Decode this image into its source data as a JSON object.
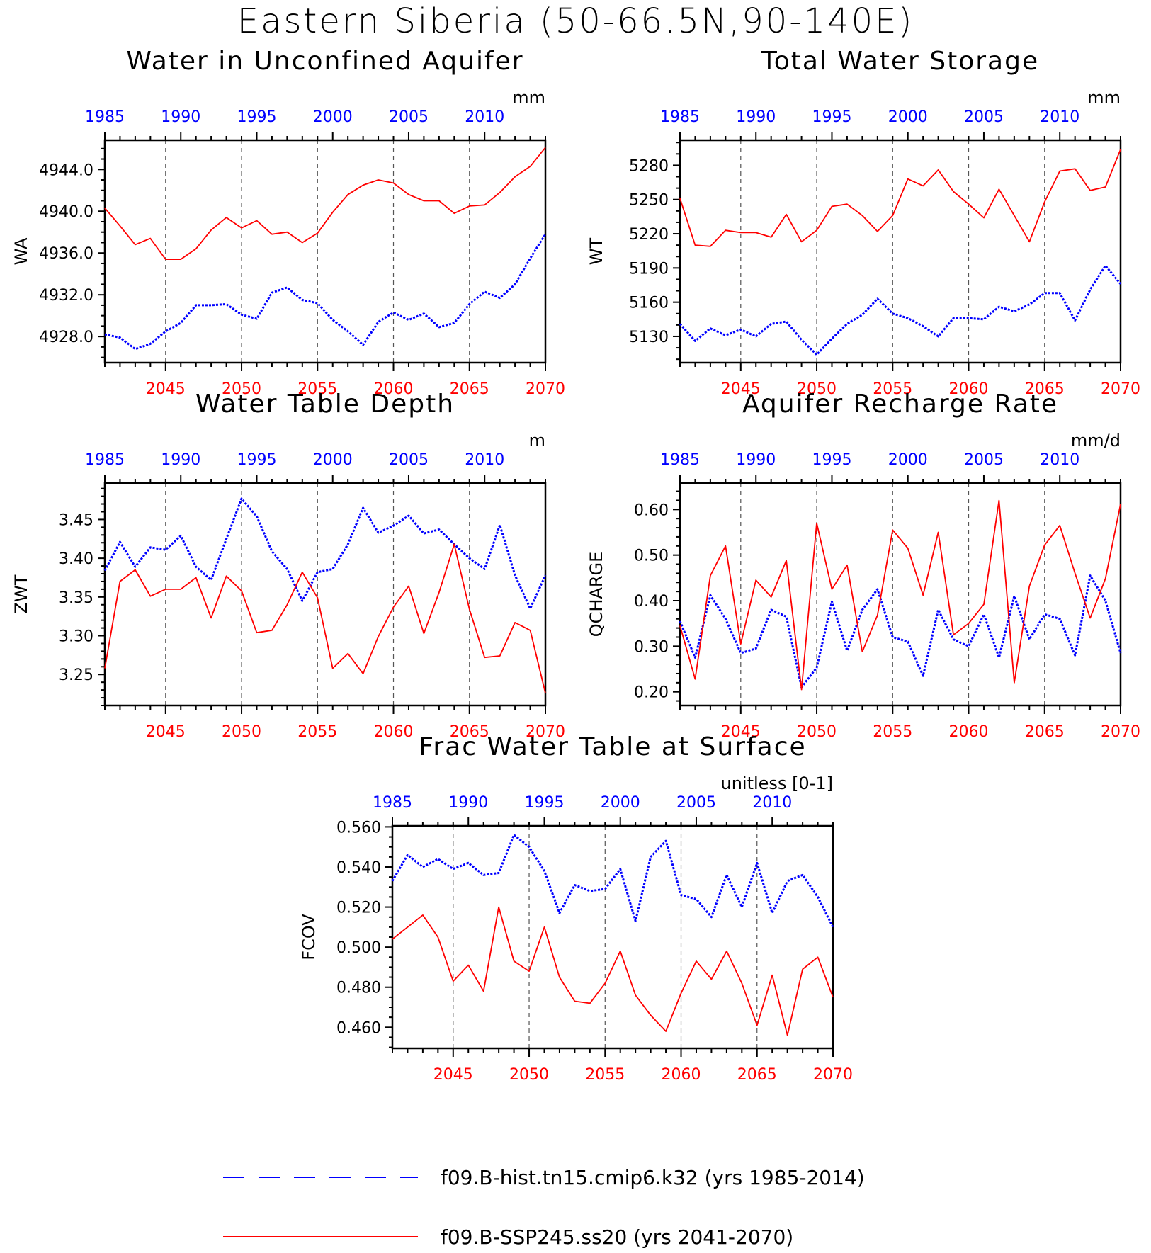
{
  "title": "Eastern Siberia (50-66.5N,90-140E)",
  "colors": {
    "hist": "#0000ff",
    "ssp": "#ff0000",
    "axis": "#000000",
    "grid": "#555555"
  },
  "legend": {
    "hist_label": "f09.B-hist.tn15.cmip6.k32 (yrs 1985-2014)",
    "ssp_label": "f09.B-SSP245.ss20 (yrs 2041-2070)"
  },
  "chart_data": [
    {
      "id": "wa",
      "type": "line",
      "title": "Water in Unconfined Aquifer",
      "ylabel": "WA",
      "units": "mm",
      "ylim": [
        4925.5,
        4946.8
      ],
      "yticks": [
        4928.0,
        4932.0,
        4936.0,
        4940.0,
        4944.0
      ],
      "yminor": 1,
      "ytick_decimals": 1,
      "x_top_ticks": [
        1985,
        1990,
        1995,
        2000,
        2005,
        2010
      ],
      "x_bottom_ticks": [
        2045,
        2050,
        2055,
        2060,
        2065,
        2070
      ],
      "xlim_top": [
        1985,
        2014
      ],
      "xlim_bottom": [
        2041,
        2070
      ],
      "series": [
        {
          "name": "f09.B-hist.tn15.cmip6.k32 (yrs 1985-2014)",
          "x_start": 1985,
          "values": [
            4928.2,
            4927.9,
            4926.8,
            4927.3,
            4928.5,
            4929.3,
            4931.0,
            4931.0,
            4931.1,
            4930.1,
            4929.7,
            4932.2,
            4932.7,
            4931.5,
            4931.2,
            4929.6,
            4928.5,
            4927.2,
            4929.4,
            4930.3,
            4929.6,
            4930.2,
            4928.9,
            4929.3,
            4931.1,
            4932.3,
            4931.7,
            4933.0,
            4935.5,
            4937.8
          ]
        },
        {
          "name": "f09.B-SSP245.ss20 (yrs 2041-2070)",
          "x_start": 2041,
          "values": [
            4940.3,
            4938.6,
            4936.8,
            4937.4,
            4935.4,
            4935.4,
            4936.4,
            4938.2,
            4939.4,
            4938.4,
            4939.1,
            4937.8,
            4938.0,
            4937.0,
            4937.9,
            4939.9,
            4941.6,
            4942.5,
            4943.0,
            4942.7,
            4941.6,
            4941.0,
            4941.0,
            4939.8,
            4940.5,
            4940.6,
            4941.8,
            4943.3,
            4944.3,
            4946.1
          ]
        }
      ]
    },
    {
      "id": "wt",
      "type": "line",
      "title": "Total Water Storage",
      "ylabel": "WT",
      "units": "mm",
      "ylim": [
        5107,
        5302
      ],
      "yticks": [
        5130,
        5160,
        5190,
        5220,
        5250,
        5280
      ],
      "yminor": 10,
      "ytick_decimals": 0,
      "x_top_ticks": [
        1985,
        1990,
        1995,
        2000,
        2005,
        2010
      ],
      "x_bottom_ticks": [
        2045,
        2050,
        2055,
        2060,
        2065,
        2070
      ],
      "xlim_top": [
        1985,
        2014
      ],
      "xlim_bottom": [
        2041,
        2070
      ],
      "series": [
        {
          "name": "f09.B-hist.tn15.cmip6.k32 (yrs 1985-2014)",
          "x_start": 1985,
          "values": [
            5141,
            5126,
            5137,
            5131,
            5136,
            5130,
            5141,
            5143,
            5127,
            5114,
            5128,
            5141,
            5149,
            5163,
            5150,
            5146,
            5139,
            5130,
            5146,
            5146,
            5145,
            5156,
            5152,
            5158,
            5168,
            5168,
            5144,
            5171,
            5192,
            5176
          ]
        },
        {
          "name": "f09.B-SSP245.ss20 (yrs 2041-2070)",
          "x_start": 2041,
          "values": [
            5251,
            5210,
            5209,
            5223,
            5221,
            5221,
            5217,
            5237,
            5213,
            5223,
            5244,
            5246,
            5236,
            5222,
            5236,
            5268,
            5262,
            5276,
            5257,
            5246,
            5234,
            5259,
            5236,
            5213,
            5248,
            5275,
            5277,
            5258,
            5261,
            5294
          ]
        }
      ]
    },
    {
      "id": "zwt",
      "type": "line",
      "title": "Water Table Depth",
      "ylabel": "ZWT",
      "units": "m",
      "ylim": [
        3.21,
        3.497
      ],
      "yticks": [
        3.25,
        3.3,
        3.35,
        3.4,
        3.45
      ],
      "yminor": 0.01,
      "ytick_decimals": 2,
      "x_top_ticks": [
        1985,
        1990,
        1995,
        2000,
        2005,
        2010
      ],
      "x_bottom_ticks": [
        2045,
        2050,
        2055,
        2060,
        2065,
        2070
      ],
      "xlim_top": [
        1985,
        2014
      ],
      "xlim_bottom": [
        2041,
        2070
      ],
      "series": [
        {
          "name": "f09.B-hist.tn15.cmip6.k32 (yrs 1985-2014)",
          "x_start": 1985,
          "values": [
            3.384,
            3.421,
            3.389,
            3.414,
            3.411,
            3.429,
            3.389,
            3.372,
            3.425,
            3.477,
            3.454,
            3.409,
            3.386,
            3.345,
            3.382,
            3.386,
            3.418,
            3.465,
            3.433,
            3.442,
            3.455,
            3.432,
            3.437,
            3.418,
            3.4,
            3.386,
            3.443,
            3.378,
            3.335,
            3.378
          ]
        },
        {
          "name": "f09.B-SSP245.ss20 (yrs 2041-2070)",
          "x_start": 2041,
          "values": [
            3.258,
            3.37,
            3.385,
            3.351,
            3.36,
            3.36,
            3.375,
            3.323,
            3.377,
            3.358,
            3.304,
            3.307,
            3.34,
            3.382,
            3.349,
            3.258,
            3.277,
            3.251,
            3.299,
            3.337,
            3.364,
            3.303,
            3.356,
            3.418,
            3.334,
            3.272,
            3.274,
            3.317,
            3.307,
            3.226
          ]
        }
      ]
    },
    {
      "id": "qcharge",
      "type": "line",
      "title": "Aquifer Recharge Rate",
      "ylabel": "QCHARGE",
      "units": "mm/d",
      "ylim": [
        0.17,
        0.658
      ],
      "yticks": [
        0.2,
        0.3,
        0.4,
        0.5,
        0.6
      ],
      "yminor": 0.02,
      "ytick_decimals": 2,
      "x_top_ticks": [
        1985,
        1990,
        1995,
        2000,
        2005,
        2010
      ],
      "x_bottom_ticks": [
        2045,
        2050,
        2055,
        2060,
        2065,
        2070
      ],
      "xlim_top": [
        1985,
        2014
      ],
      "xlim_bottom": [
        2041,
        2070
      ],
      "series": [
        {
          "name": "f09.B-hist.tn15.cmip6.k32 (yrs 1985-2014)",
          "x_start": 1985,
          "values": [
            0.355,
            0.275,
            0.412,
            0.36,
            0.285,
            0.295,
            0.38,
            0.365,
            0.21,
            0.253,
            0.398,
            0.29,
            0.38,
            0.425,
            0.32,
            0.31,
            0.235,
            0.38,
            0.315,
            0.3,
            0.37,
            0.275,
            0.41,
            0.315,
            0.37,
            0.36,
            0.28,
            0.455,
            0.4,
            0.285
          ]
        },
        {
          "name": "f09.B-SSP245.ss20 (yrs 2041-2070)",
          "x_start": 2041,
          "values": [
            0.345,
            0.228,
            0.455,
            0.52,
            0.305,
            0.445,
            0.408,
            0.488,
            0.205,
            0.57,
            0.425,
            0.478,
            0.288,
            0.368,
            0.555,
            0.515,
            0.412,
            0.55,
            0.325,
            0.35,
            0.392,
            0.62,
            0.22,
            0.432,
            0.522,
            0.565,
            0.46,
            0.362,
            0.448,
            0.612
          ]
        }
      ]
    },
    {
      "id": "fcov",
      "type": "line",
      "title": "Frac Water Table at Surface",
      "ylabel": "FCOV",
      "units": "unitless [0-1]",
      "ylim": [
        0.4495,
        0.5605
      ],
      "yticks": [
        0.46,
        0.48,
        0.5,
        0.52,
        0.54,
        0.56
      ],
      "yminor": 0.005,
      "ytick_decimals": 3,
      "x_top_ticks": [
        1985,
        1990,
        1995,
        2000,
        2005,
        2010
      ],
      "x_bottom_ticks": [
        2045,
        2050,
        2055,
        2060,
        2065,
        2070
      ],
      "xlim_top": [
        1985,
        2014
      ],
      "xlim_bottom": [
        2041,
        2070
      ],
      "series": [
        {
          "name": "f09.B-hist.tn15.cmip6.k32 (yrs 1985-2014)",
          "x_start": 1985,
          "values": [
            0.533,
            0.546,
            0.54,
            0.544,
            0.539,
            0.542,
            0.536,
            0.537,
            0.556,
            0.55,
            0.538,
            0.517,
            0.531,
            0.528,
            0.529,
            0.539,
            0.513,
            0.545,
            0.553,
            0.526,
            0.524,
            0.515,
            0.536,
            0.52,
            0.542,
            0.517,
            0.533,
            0.536,
            0.525,
            0.51
          ]
        },
        {
          "name": "f09.B-SSP245.ss20 (yrs 2041-2070)",
          "x_start": 2041,
          "values": [
            0.504,
            0.51,
            0.516,
            0.505,
            0.483,
            0.491,
            0.478,
            0.52,
            0.493,
            0.488,
            0.51,
            0.485,
            0.473,
            0.472,
            0.482,
            0.498,
            0.476,
            0.466,
            0.458,
            0.477,
            0.493,
            0.484,
            0.498,
            0.482,
            0.461,
            0.486,
            0.456,
            0.489,
            0.495,
            0.475
          ]
        }
      ]
    }
  ]
}
